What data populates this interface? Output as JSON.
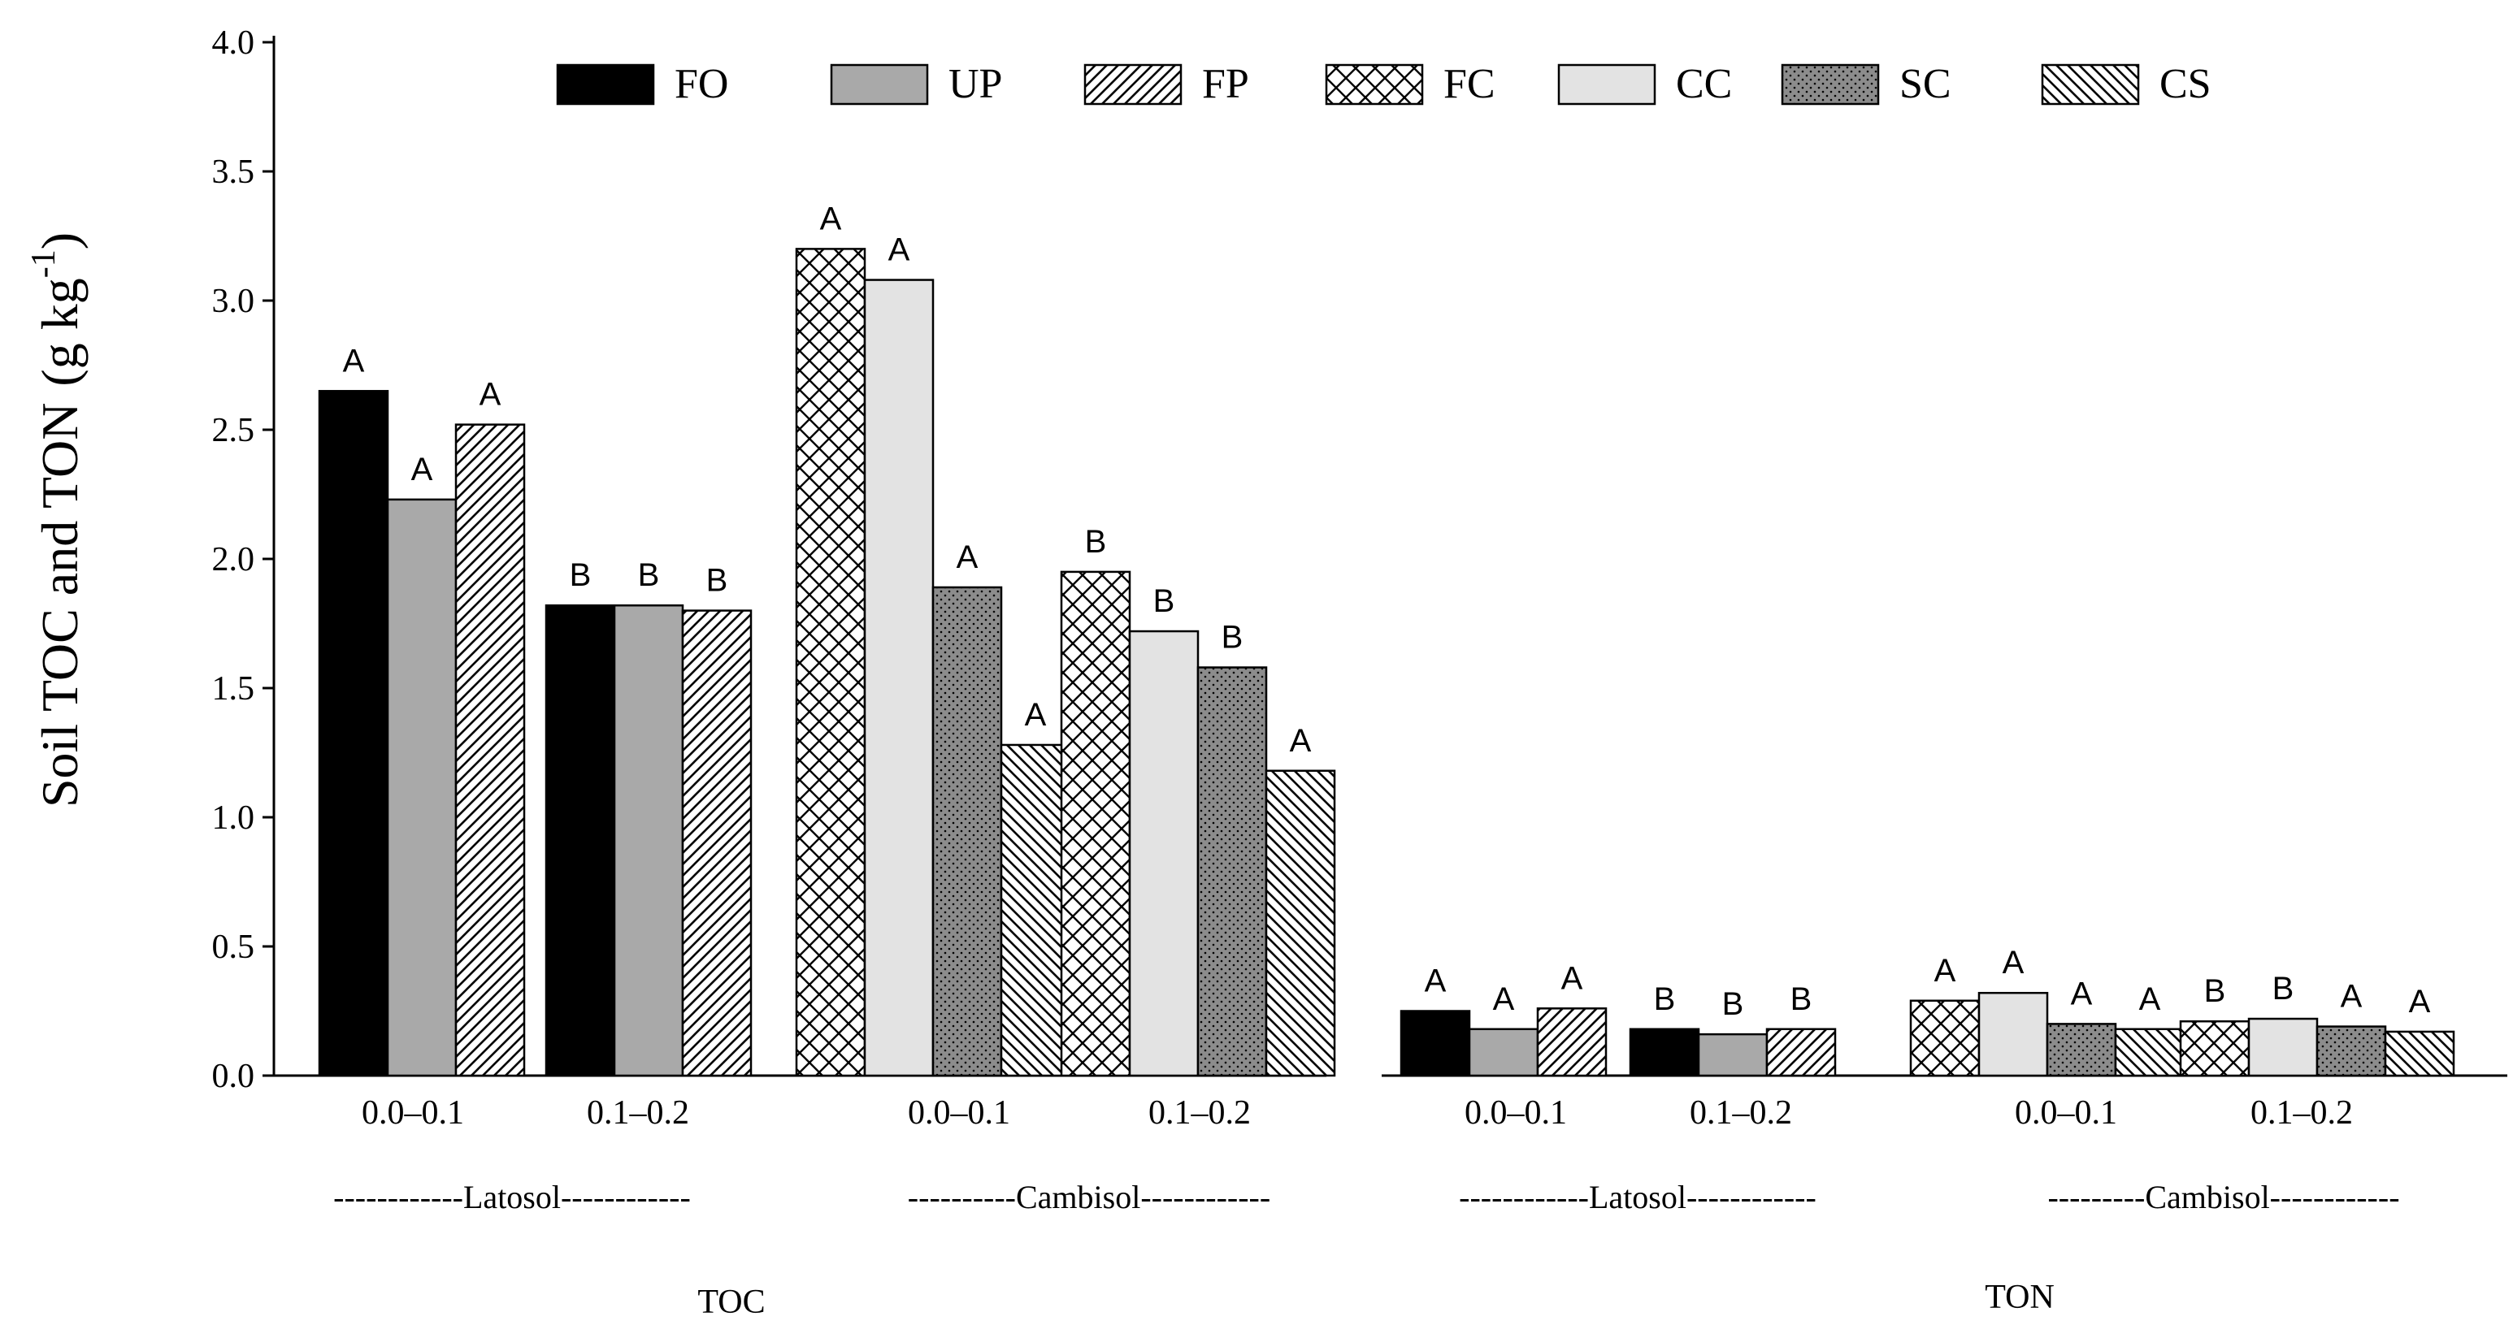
{
  "chart_data": {
    "type": "bar",
    "ylabel": "Soil TOC and TON",
    "ylabel_unit": "(g kg",
    "ylabel_exp": "-1",
    "ylabel_close": ")",
    "ylim": [
      0,
      4.0
    ],
    "yticks": [
      "0.0",
      "0.5",
      "1.0",
      "1.5",
      "2.0",
      "2.5",
      "3.0",
      "3.5",
      "4.0"
    ],
    "legend": [
      {
        "name": "FO",
        "pattern": "solid"
      },
      {
        "name": "UP",
        "pattern": "gray"
      },
      {
        "name": "FP",
        "pattern": "diag"
      },
      {
        "name": "FC",
        "pattern": "cross"
      },
      {
        "name": "CC",
        "pattern": "light"
      },
      {
        "name": "SC",
        "pattern": "dots"
      },
      {
        "name": "CS",
        "pattern": "back"
      }
    ],
    "soil_labels": [
      "------------Latosol------------",
      "----------Cambisol------------",
      "------------Latosol------------",
      "---------Cambisol------------"
    ],
    "panel_labels": [
      "TOC",
      "TON"
    ],
    "groups": [
      {
        "label": "0.0–0.1",
        "soil": "Latosol",
        "panel": "TOC",
        "bars": [
          {
            "series": "FO",
            "value": 2.65,
            "letter": "A"
          },
          {
            "series": "UP",
            "value": 2.23,
            "letter": "A"
          },
          {
            "series": "FP",
            "value": 2.52,
            "letter": "A"
          }
        ]
      },
      {
        "label": "0.1–0.2",
        "soil": "Latosol",
        "panel": "TOC",
        "bars": [
          {
            "series": "FO",
            "value": 1.82,
            "letter": "B"
          },
          {
            "series": "UP",
            "value": 1.82,
            "letter": "B"
          },
          {
            "series": "FP",
            "value": 1.8,
            "letter": "B"
          }
        ]
      },
      {
        "label": "0.0–0.1",
        "soil": "Cambisol",
        "panel": "TOC",
        "bars": [
          {
            "series": "FC",
            "value": 3.2,
            "letter": "A"
          },
          {
            "series": "CC",
            "value": 3.08,
            "letter": "A"
          },
          {
            "series": "SC",
            "value": 1.89,
            "letter": "A"
          },
          {
            "series": "CS",
            "value": 1.28,
            "letter": "A"
          }
        ]
      },
      {
        "label": "0.1–0.2",
        "soil": "Cambisol",
        "panel": "TOC",
        "bars": [
          {
            "series": "FC",
            "value": 1.95,
            "letter": "B"
          },
          {
            "series": "CC",
            "value": 1.72,
            "letter": "B"
          },
          {
            "series": "SC",
            "value": 1.58,
            "letter": "B"
          },
          {
            "series": "CS",
            "value": 1.18,
            "letter": "A"
          }
        ]
      },
      {
        "label": "0.0–0.1",
        "soil": "Latosol",
        "panel": "TON",
        "bars": [
          {
            "series": "FO",
            "value": 0.25,
            "letter": "A"
          },
          {
            "series": "UP",
            "value": 0.18,
            "letter": "A"
          },
          {
            "series": "FP",
            "value": 0.26,
            "letter": "A"
          }
        ]
      },
      {
        "label": "0.1–0.2",
        "soil": "Latosol",
        "panel": "TON",
        "bars": [
          {
            "series": "FO",
            "value": 0.18,
            "letter": "B"
          },
          {
            "series": "UP",
            "value": 0.16,
            "letter": "B"
          },
          {
            "series": "FP",
            "value": 0.18,
            "letter": "B"
          }
        ]
      },
      {
        "label": "0.0–0.1",
        "soil": "Cambisol",
        "panel": "TON",
        "bars": [
          {
            "series": "FC",
            "value": 0.29,
            "letter": "A"
          },
          {
            "series": "CC",
            "value": 0.32,
            "letter": "A"
          },
          {
            "series": "SC",
            "value": 0.2,
            "letter": "A"
          },
          {
            "series": "CS",
            "value": 0.18,
            "letter": "A"
          }
        ]
      },
      {
        "label": "0.1–0.2",
        "soil": "Cambisol",
        "panel": "TON",
        "bars": [
          {
            "series": "FC",
            "value": 0.21,
            "letter": "B"
          },
          {
            "series": "CC",
            "value": 0.22,
            "letter": "B"
          },
          {
            "series": "SC",
            "value": 0.19,
            "letter": "A"
          },
          {
            "series": "CS",
            "value": 0.17,
            "letter": "A"
          }
        ]
      }
    ]
  }
}
